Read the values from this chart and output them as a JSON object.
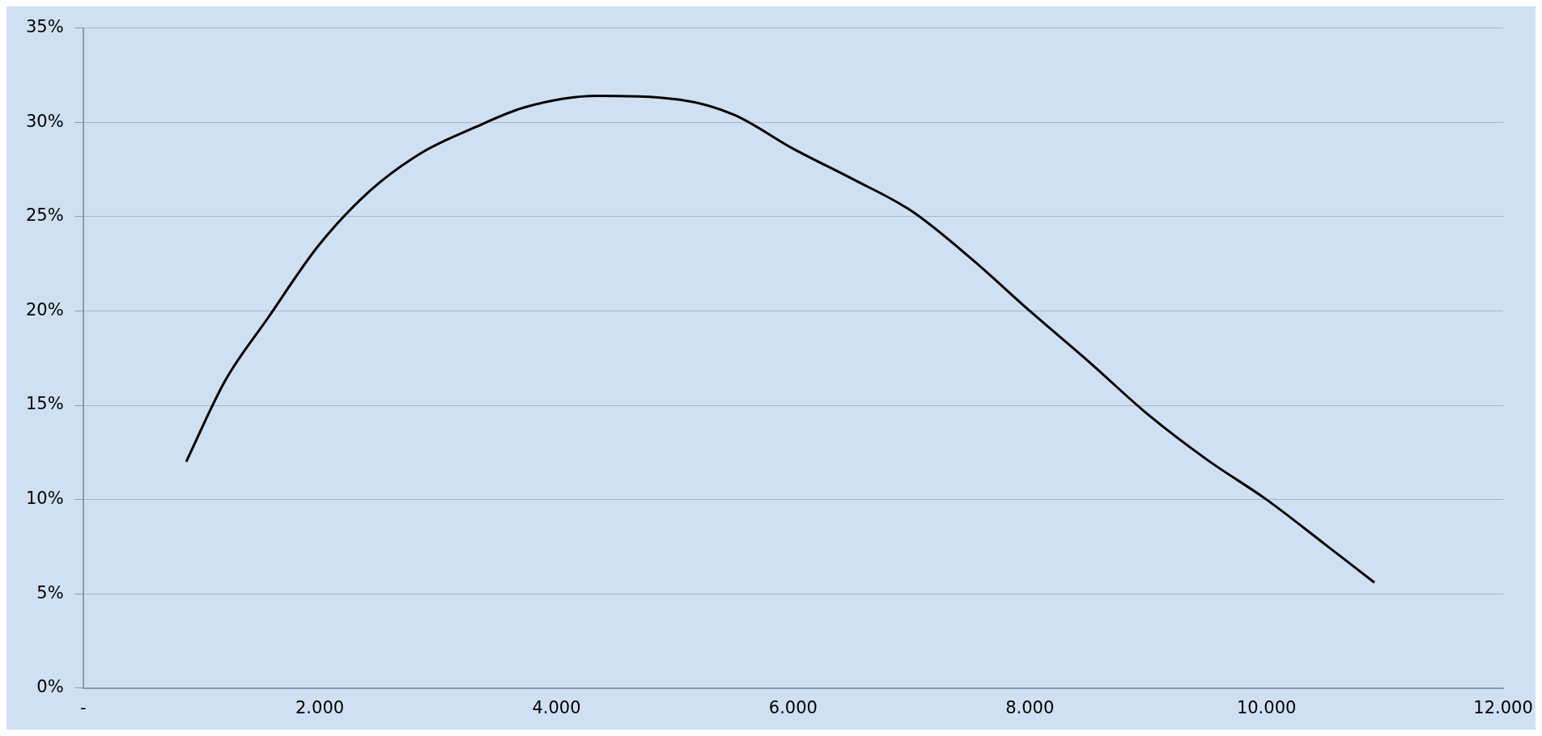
{
  "chart_data": {
    "type": "line",
    "x": [
      871,
      1200,
      1559,
      1994,
      2430,
      2865,
      3300,
      3736,
      4345,
      5042,
      5500,
      6000,
      6500,
      7000,
      7500,
      8000,
      8500,
      9000,
      9500,
      10000,
      10500,
      10912
    ],
    "values": [
      12.0,
      16.3,
      19.6,
      23.5,
      26.4,
      28.4,
      29.7,
      30.8,
      31.4,
      31.2,
      30.4,
      28.6,
      27.0,
      25.3,
      22.8,
      20.0,
      17.3,
      14.5,
      12.1,
      10.0,
      7.6,
      5.6
    ],
    "color": "#000000",
    "xlim": [
      0,
      12000
    ],
    "xticks": [
      {
        "value": 0,
        "label": "-"
      },
      {
        "value": 2000,
        "label": "2.000"
      },
      {
        "value": 4000,
        "label": "4.000"
      },
      {
        "value": 6000,
        "label": "6.000"
      },
      {
        "value": 8000,
        "label": "8.000"
      },
      {
        "value": 10000,
        "label": "10.000"
      },
      {
        "value": 12000,
        "label": "12.000"
      }
    ],
    "ylim": [
      0,
      35
    ],
    "yticks": [
      {
        "value": 0,
        "label": "0%"
      },
      {
        "value": 5,
        "label": "5%"
      },
      {
        "value": 10,
        "label": "10%"
      },
      {
        "value": 15,
        "label": "15%"
      },
      {
        "value": 20,
        "label": "20%"
      },
      {
        "value": 25,
        "label": "25%"
      },
      {
        "value": 30,
        "label": "30%"
      },
      {
        "value": 35,
        "label": "35%"
      }
    ],
    "grid": "y",
    "legend": false,
    "marker": "none",
    "line_style": "solid"
  }
}
